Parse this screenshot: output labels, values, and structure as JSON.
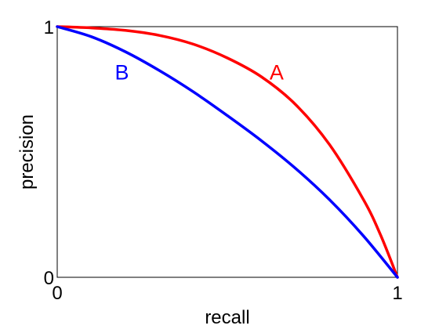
{
  "chart_data": {
    "type": "line",
    "title": "",
    "xlabel": "recall",
    "ylabel": "precision",
    "xlim": [
      0,
      1
    ],
    "ylim": [
      0,
      1
    ],
    "grid": false,
    "x_ticks": [
      {
        "value": 0,
        "label": "0"
      },
      {
        "value": 1,
        "label": "1"
      }
    ],
    "y_ticks": [
      {
        "value": 0,
        "label": "0"
      },
      {
        "value": 1,
        "label": "1"
      }
    ],
    "series": [
      {
        "name": "A",
        "color": "#ff0000",
        "x": [
          0,
          0.1,
          0.2,
          0.3,
          0.4,
          0.5,
          0.6,
          0.7,
          0.8,
          0.9,
          0.95,
          1.0
        ],
        "y": [
          1.0,
          0.995,
          0.985,
          0.965,
          0.93,
          0.875,
          0.8,
          0.69,
          0.53,
          0.31,
          0.17,
          0.0
        ]
      },
      {
        "name": "B",
        "color": "#0000ff",
        "x": [
          0,
          0.1,
          0.2,
          0.3,
          0.4,
          0.5,
          0.6,
          0.7,
          0.8,
          0.9,
          1.0
        ],
        "y": [
          1.0,
          0.96,
          0.9,
          0.825,
          0.74,
          0.645,
          0.545,
          0.435,
          0.31,
          0.165,
          0.0
        ]
      }
    ],
    "annotations": [
      {
        "text": "A",
        "x": 0.645,
        "y": 0.82,
        "color": "#ff0000"
      },
      {
        "text": "B",
        "x": 0.19,
        "y": 0.82,
        "color": "#0000ff"
      }
    ]
  }
}
